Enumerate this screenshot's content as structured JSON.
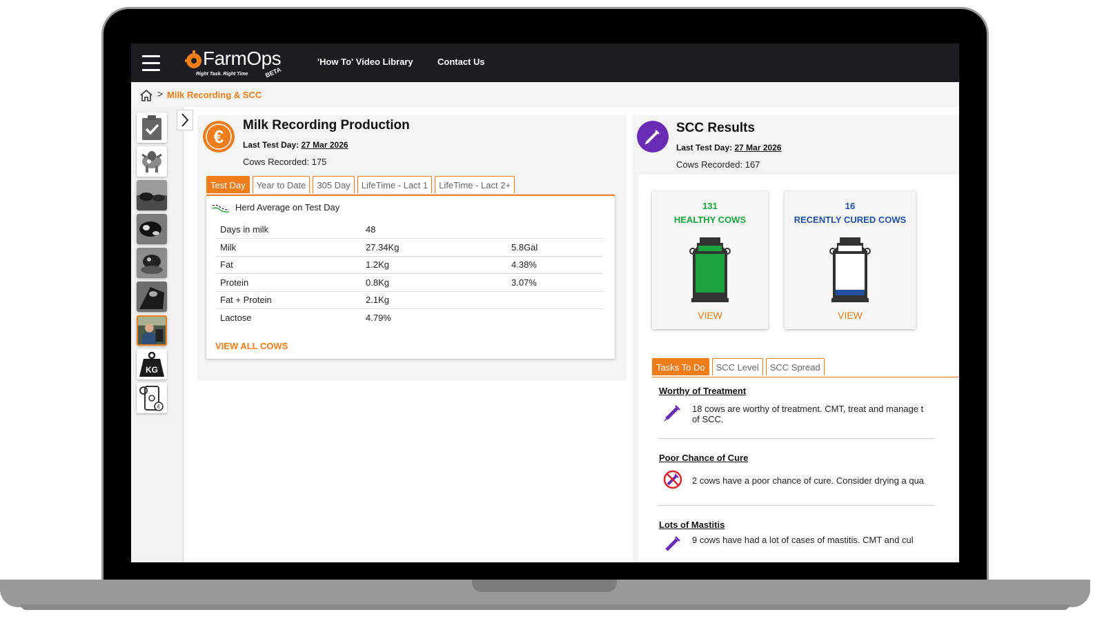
{
  "header": {
    "logo_name": "FarmOps",
    "logo_tagline": "Right Task. Right Time",
    "logo_badge": "BETA",
    "nav": [
      {
        "label": "'How To' Video Library"
      },
      {
        "label": "Contact Us"
      }
    ]
  },
  "breadcrumb": {
    "separator": ">",
    "current": "Milk Recording & SCC"
  },
  "sidebar": {
    "items": [
      {
        "icon": "clipboard-check-icon"
      },
      {
        "icon": "cow-icon"
      },
      {
        "icon": "cows-photo-1"
      },
      {
        "icon": "cows-photo-2"
      },
      {
        "icon": "cows-photo-3"
      },
      {
        "icon": "cows-photo-4"
      },
      {
        "icon": "farmer-photo",
        "active": true
      },
      {
        "icon": "weight-kg-icon",
        "label": "KG"
      },
      {
        "icon": "phone-settings-euro-icon"
      }
    ]
  },
  "milk_panel": {
    "title": "Milk Recording Production",
    "last_test_label": "Last Test Day:",
    "last_test_date": "27 Mar 2026",
    "cows_recorded": "Cows Recorded: 175",
    "tabs": [
      {
        "label": "Test Day",
        "active": true
      },
      {
        "label": "Year to Date"
      },
      {
        "label": "305 Day"
      },
      {
        "label": "LifeTime - Lact 1"
      },
      {
        "label": "LifeTime - Lact 2+"
      }
    ],
    "legend": "Herd Average on Test Day",
    "rows": [
      {
        "name": "Days in milk",
        "value": "48",
        "extra": ""
      },
      {
        "name": "Milk",
        "value": "27.34Kg",
        "extra": "5.8Gal"
      },
      {
        "name": "Fat",
        "value": "1.2Kg",
        "extra": "4.38%"
      },
      {
        "name": "Protein",
        "value": "0.8Kg",
        "extra": "3.07%"
      },
      {
        "name": "Fat + Protein",
        "value": "2.1Kg",
        "extra": ""
      },
      {
        "name": "Lactose",
        "value": "4.79%",
        "extra": ""
      }
    ],
    "view_all": "VIEW ALL COWS",
    "accent": "#ef7d1a"
  },
  "scc_panel": {
    "title": "SCC Results",
    "last_test_label": "Last Test Day:",
    "last_test_date": "27 Mar 2026",
    "cows_recorded": "Cows Recorded: 167",
    "cards": [
      {
        "count": "131",
        "label": "HEALTHY COWS",
        "color": "#19a33a",
        "view": "VIEW"
      },
      {
        "count": "16",
        "label": "RECENTLY CURED COWS",
        "color": "#1f4fa0",
        "view": "VIEW"
      }
    ],
    "tabs": [
      {
        "label": "Tasks To Do",
        "active": true
      },
      {
        "label": "SCC Level"
      },
      {
        "label": "SCC Spread"
      }
    ],
    "tasks": [
      {
        "title": "Worthy of Treatment",
        "text_line1": "18 cows are worthy of treatment. CMT, treat and manage t",
        "text_line2": "of SCC."
      },
      {
        "title": "Poor Chance of Cure",
        "text_line1": "2 cows have a poor chance of cure. Consider drying a qua",
        "text_line2": ""
      },
      {
        "title": "Lots of Mastitis",
        "text_line1": "9 cows have had a lot of cases of mastitis. CMT and cul",
        "text_line2": ""
      }
    ],
    "accent": "#6a2bb5"
  }
}
